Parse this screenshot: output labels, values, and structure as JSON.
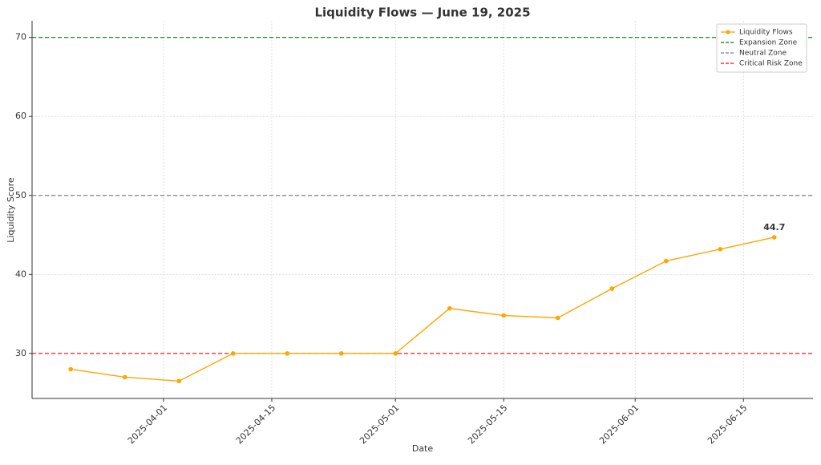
{
  "chart_data": {
    "type": "line",
    "title": "Liquidity Flows — June 19, 2025",
    "x_label": "Date",
    "y_label": "Liquidity Score",
    "x": [
      "2025-03-20",
      "2025-03-27",
      "2025-04-03",
      "2025-04-10",
      "2025-04-17",
      "2025-04-24",
      "2025-05-01",
      "2025-05-08",
      "2025-05-15",
      "2025-05-22",
      "2025-05-29",
      "2025-06-05",
      "2025-06-12",
      "2025-06-19"
    ],
    "series": [
      {
        "name": "Liquidity Flows",
        "color": "#ffa500",
        "values": [
          28.0,
          27.0,
          26.5,
          30.0,
          30.0,
          30.0,
          30.0,
          35.7,
          34.8,
          34.5,
          38.2,
          41.7,
          43.2,
          44.7
        ]
      }
    ],
    "reference_lines": [
      {
        "name": "Expansion Zone",
        "color": "#008000",
        "value": 70
      },
      {
        "name": "Neutral Zone",
        "color": "#808080",
        "value": 50
      },
      {
        "name": "Critical Risk Zone",
        "color": "#ff0000",
        "value": 30
      }
    ],
    "annotations": [
      {
        "text": "44.7",
        "x": "2025-06-19",
        "y": 44.7
      }
    ],
    "xlim": [
      "2025-03-15",
      "2025-06-24"
    ],
    "xticks": [
      "2025-04-01",
      "2025-04-15",
      "2025-05-01",
      "2025-05-15",
      "2025-06-01",
      "2025-06-15"
    ],
    "ylim": [
      24.3,
      72.1
    ],
    "yticks": [
      30,
      40,
      50,
      60,
      70
    ],
    "grid": true,
    "legend": "upper right"
  }
}
